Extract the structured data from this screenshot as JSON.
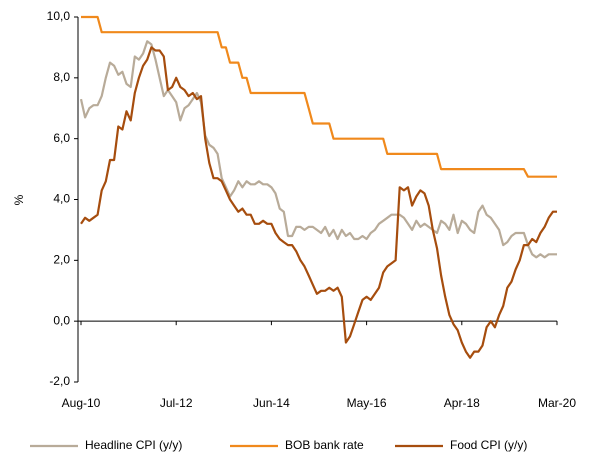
{
  "chart_data": {
    "type": "line",
    "y_label": "%",
    "categories": [
      "Aug-10",
      null,
      null,
      null,
      null,
      null,
      null,
      null,
      null,
      null,
      null,
      null,
      null,
      null,
      null,
      null,
      null,
      null,
      null,
      null,
      null,
      null,
      null,
      "Jul-12",
      null,
      null,
      null,
      null,
      null,
      null,
      null,
      null,
      null,
      null,
      null,
      null,
      null,
      null,
      null,
      null,
      null,
      null,
      null,
      null,
      null,
      null,
      "Jun-14",
      null,
      null,
      null,
      null,
      null,
      null,
      null,
      null,
      null,
      null,
      null,
      null,
      null,
      null,
      null,
      null,
      null,
      null,
      null,
      null,
      null,
      null,
      "May-16",
      null,
      null,
      null,
      null,
      null,
      null,
      null,
      null,
      null,
      null,
      null,
      null,
      null,
      null,
      null,
      null,
      null,
      null,
      null,
      null,
      null,
      null,
      "Apr-18",
      null,
      null,
      null,
      null,
      null,
      null,
      null,
      null,
      null,
      null,
      null,
      null,
      null,
      null,
      null,
      null,
      null,
      null,
      null,
      null,
      null,
      null,
      "Mar-20"
    ],
    "series": [
      {
        "name": "Headline CPI (y/y)",
        "color": "#b8ab99",
        "values": [
          7.3,
          6.7,
          7.0,
          7.1,
          7.1,
          7.4,
          8.0,
          8.5,
          8.4,
          8.1,
          8.2,
          7.8,
          7.7,
          8.7,
          8.6,
          8.8,
          9.2,
          9.1,
          8.6,
          8.0,
          7.4,
          7.6,
          7.4,
          7.2,
          6.6,
          7.0,
          7.1,
          7.3,
          7.5,
          7.2,
          6.1,
          5.8,
          5.7,
          5.5,
          4.7,
          4.4,
          4.1,
          4.3,
          4.6,
          4.4,
          4.6,
          4.5,
          4.5,
          4.6,
          4.5,
          4.5,
          4.4,
          4.2,
          3.7,
          3.6,
          2.8,
          2.8,
          3.1,
          3.1,
          3.0,
          3.1,
          3.1,
          3.0,
          2.9,
          3.1,
          2.8,
          3.0,
          2.7,
          3.0,
          2.8,
          2.9,
          2.7,
          2.7,
          2.8,
          2.7,
          2.9,
          3.0,
          3.2,
          3.3,
          3.4,
          3.5,
          3.5,
          3.5,
          3.4,
          3.2,
          3.0,
          3.3,
          3.1,
          3.2,
          3.1,
          3.0,
          2.9,
          3.3,
          3.2,
          3.0,
          3.5,
          2.9,
          3.3,
          3.2,
          3.0,
          2.9,
          3.6,
          3.8,
          3.5,
          3.4,
          3.2,
          3.0,
          2.5,
          2.6,
          2.8,
          2.9,
          2.9,
          2.9,
          2.5,
          2.2,
          2.1,
          2.2,
          2.1,
          2.2,
          2.2,
          2.2
        ]
      },
      {
        "name": "BOB bank rate",
        "color": "#f0891c",
        "values": [
          10,
          10,
          10,
          10,
          10,
          9.5,
          9.5,
          9.5,
          9.5,
          9.5,
          9.5,
          9.5,
          9.5,
          9.5,
          9.5,
          9.5,
          9.5,
          9.5,
          9.5,
          9.5,
          9.5,
          9.5,
          9.5,
          9.5,
          9.5,
          9.5,
          9.5,
          9.5,
          9.5,
          9.5,
          9.5,
          9.5,
          9.5,
          9.5,
          9.0,
          9.0,
          8.5,
          8.5,
          8.5,
          8.0,
          8.0,
          7.5,
          7.5,
          7.5,
          7.5,
          7.5,
          7.5,
          7.5,
          7.5,
          7.5,
          7.5,
          7.5,
          7.5,
          7.5,
          7.5,
          7.0,
          6.5,
          6.5,
          6.5,
          6.5,
          6.5,
          6.0,
          6.0,
          6.0,
          6.0,
          6.0,
          6.0,
          6.0,
          6.0,
          6.0,
          6.0,
          6.0,
          6.0,
          6.0,
          5.5,
          5.5,
          5.5,
          5.5,
          5.5,
          5.5,
          5.5,
          5.5,
          5.5,
          5.5,
          5.5,
          5.5,
          5.5,
          5.0,
          5.0,
          5.0,
          5.0,
          5.0,
          5.0,
          5.0,
          5.0,
          5.0,
          5.0,
          5.0,
          5.0,
          5.0,
          5.0,
          5.0,
          5.0,
          5.0,
          5.0,
          5.0,
          5.0,
          5.0,
          4.75,
          4.75,
          4.75,
          4.75,
          4.75,
          4.75,
          4.75,
          4.75
        ]
      },
      {
        "name": "Food CPI (y/y)",
        "color": "#a64d0e",
        "values": [
          3.2,
          3.4,
          3.3,
          3.4,
          3.5,
          4.3,
          4.6,
          5.3,
          5.3,
          6.4,
          6.3,
          6.9,
          6.6,
          7.5,
          8.0,
          8.4,
          8.6,
          9.0,
          8.9,
          8.9,
          8.7,
          7.6,
          7.7,
          8.0,
          7.7,
          7.6,
          7.4,
          7.5,
          7.3,
          7.4,
          6.0,
          5.2,
          4.7,
          4.7,
          4.6,
          4.3,
          4.0,
          3.8,
          3.6,
          3.7,
          3.5,
          3.5,
          3.2,
          3.2,
          3.3,
          3.2,
          3.2,
          2.9,
          2.7,
          2.6,
          2.5,
          2.5,
          2.3,
          2.0,
          1.8,
          1.5,
          1.2,
          0.9,
          1.0,
          1.0,
          1.1,
          1.0,
          1.1,
          0.8,
          -0.7,
          -0.5,
          -0.1,
          0.3,
          0.7,
          0.8,
          0.7,
          0.9,
          1.1,
          1.6,
          1.8,
          1.9,
          2.0,
          4.4,
          4.3,
          4.4,
          3.8,
          4.1,
          4.3,
          4.2,
          3.8,
          3.0,
          2.4,
          1.5,
          0.8,
          0.2,
          -0.1,
          -0.3,
          -0.7,
          -1.0,
          -1.2,
          -1.0,
          -1.0,
          -0.8,
          -0.2,
          0.0,
          -0.2,
          0.2,
          0.5,
          1.1,
          1.3,
          1.7,
          2.0,
          2.5,
          2.5,
          2.7,
          2.6,
          2.9,
          3.1,
          3.4,
          3.6,
          3.6
        ]
      }
    ],
    "ylim": [
      -2,
      10
    ],
    "yticks": [
      {
        "value": -2,
        "label": "-2,0"
      },
      {
        "value": 0,
        "label": "0,0"
      },
      {
        "value": 2,
        "label": "2,0"
      },
      {
        "value": 4,
        "label": "4,0"
      },
      {
        "value": 6,
        "label": "6,0"
      },
      {
        "value": 8,
        "label": "8,0"
      },
      {
        "value": 10,
        "label": "10,0"
      }
    ],
    "grid": false,
    "legend": "bottom"
  }
}
